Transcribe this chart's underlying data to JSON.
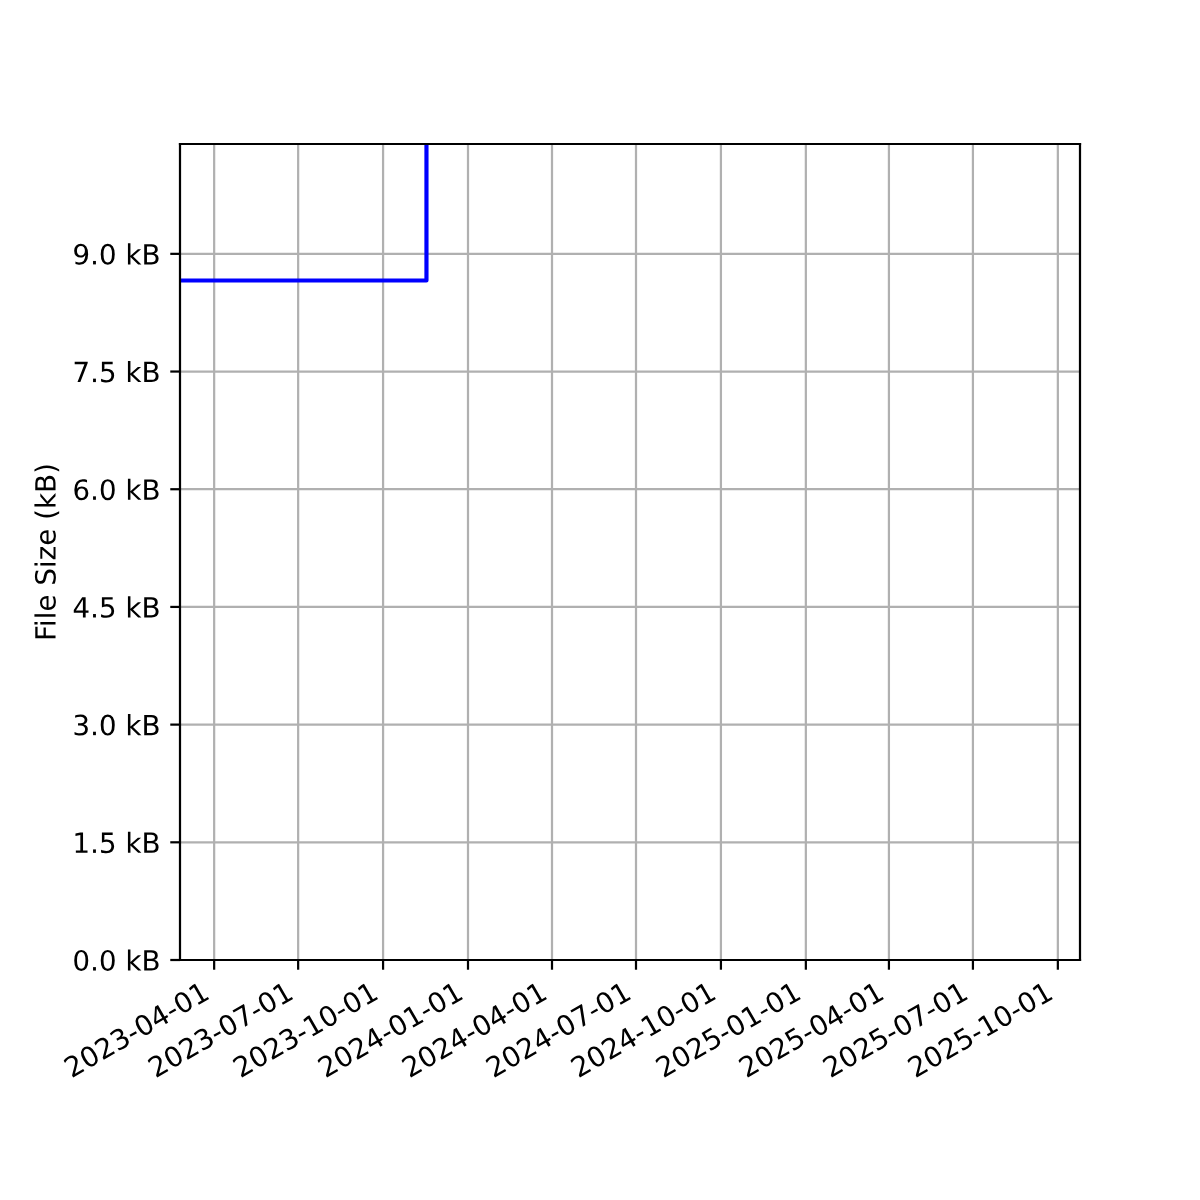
{
  "chart_data": {
    "type": "step",
    "ylabel": "File Size (kB)",
    "x": [
      "2023-02-23",
      "2023-11-17"
    ],
    "values": [
      8.66,
      10.4
    ],
    "color": "#0000ff",
    "xlim": [
      "2023-02-23",
      "2025-10-25"
    ],
    "ylim": [
      0,
      10.4
    ],
    "xticks": [
      "2023-04-01",
      "2023-07-01",
      "2023-10-01",
      "2024-01-01",
      "2024-04-01",
      "2024-07-01",
      "2024-10-01",
      "2025-01-01",
      "2025-04-01",
      "2025-07-01",
      "2025-10-01"
    ],
    "yticks": [
      {
        "value": 0,
        "label": "0.0 kB"
      },
      {
        "value": 1.5,
        "label": "1.5 kB"
      },
      {
        "value": 3.0,
        "label": "3.0 kB"
      },
      {
        "value": 4.5,
        "label": "4.5 kB"
      },
      {
        "value": 6.0,
        "label": "6.0 kB"
      },
      {
        "value": 7.5,
        "label": "7.5 kB"
      },
      {
        "value": 9.0,
        "label": "9.0 kB"
      }
    ],
    "grid": true
  }
}
